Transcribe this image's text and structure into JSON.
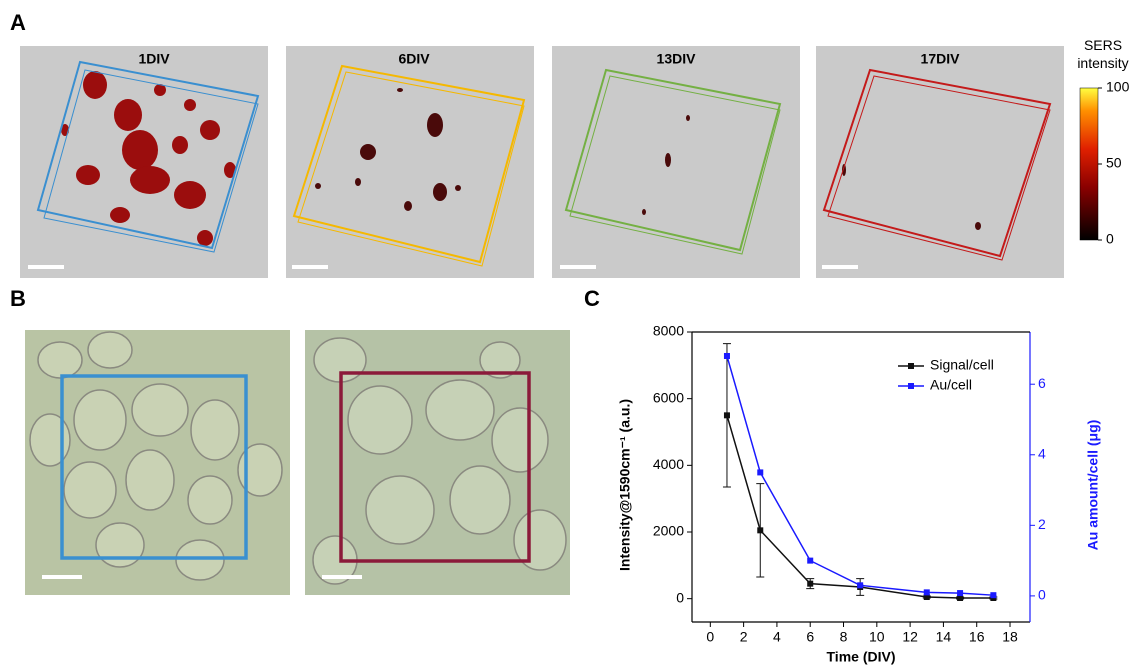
{
  "panel_labels": [
    "A",
    "B",
    "C"
  ],
  "panel_a": {
    "titles": [
      "1DIV",
      "6DIV",
      "13DIV",
      "17DIV"
    ],
    "colorbar": {
      "title": "SERS intensity",
      "clim": [
        0,
        100
      ],
      "ticks": [
        0,
        50,
        100
      ]
    }
  },
  "chart_data": {
    "type": "line",
    "x": [
      1,
      3,
      6,
      9,
      13,
      15,
      17
    ],
    "xlim": [
      -1.1,
      19.2
    ],
    "xticks": [
      0,
      2,
      4,
      6,
      8,
      10,
      12,
      14,
      16,
      18
    ],
    "ylim": [
      -700,
      8000
    ],
    "yticks": [
      0,
      2000,
      4000,
      6000,
      8000
    ],
    "y2lim": [
      -0.74,
      7.48
    ],
    "y2ticks": [
      0,
      2,
      4,
      6
    ],
    "x_label": "Time (DIV)",
    "y_label": "Intensity@1590cm⁻¹ (a.u.)",
    "y2_label": "Au amount/cell (μg)",
    "legend": "upper right",
    "series": [
      {
        "name": "Signal/cell",
        "color": "#111111",
        "values": [
          5500,
          2050,
          450,
          350,
          50,
          20,
          20
        ],
        "error": [
          2150,
          1400,
          150,
          250,
          30,
          30,
          30
        ]
      },
      {
        "name": "Au/cell",
        "color": "#1a1aff",
        "axis": "y2",
        "values": [
          6.8,
          3.5,
          1.0,
          0.3,
          0.1,
          0.08,
          0.02
        ]
      }
    ]
  }
}
